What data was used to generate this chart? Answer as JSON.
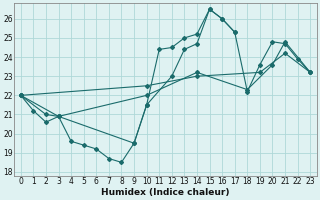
{
  "xlabel": "Humidex (Indice chaleur)",
  "bg_color": "#dff2f2",
  "grid_color": "#aed8d8",
  "line_color": "#1a6b6b",
  "xlim": [
    -0.5,
    23.5
  ],
  "ylim": [
    17.8,
    26.8
  ],
  "yticks": [
    18,
    19,
    20,
    21,
    22,
    23,
    24,
    25,
    26
  ],
  "xticks": [
    0,
    1,
    2,
    3,
    4,
    5,
    6,
    7,
    8,
    9,
    10,
    11,
    12,
    13,
    14,
    15,
    16,
    17,
    18,
    19,
    20,
    21,
    22,
    23
  ],
  "lines": [
    {
      "x": [
        0,
        1,
        2,
        3,
        4,
        5,
        6,
        7,
        8,
        9,
        10,
        11,
        12,
        13,
        14,
        15,
        16,
        17
      ],
      "y": [
        22,
        21.2,
        20.6,
        20.9,
        19.6,
        19.4,
        19.2,
        18.7,
        18.5,
        19.5,
        21.5,
        24.4,
        24.5,
        25.0,
        25.2,
        26.5,
        26.0,
        25.3
      ]
    },
    {
      "x": [
        0,
        2,
        3,
        9,
        10,
        12,
        13,
        14,
        15,
        16,
        17,
        18,
        19,
        20,
        21,
        22,
        23
      ],
      "y": [
        22,
        21.0,
        20.9,
        19.5,
        21.5,
        23.0,
        24.4,
        24.7,
        26.5,
        26.0,
        25.3,
        22.2,
        23.6,
        24.8,
        24.7,
        23.9,
        23.2
      ]
    },
    {
      "x": [
        0,
        3,
        10,
        14,
        18,
        20,
        21,
        23
      ],
      "y": [
        22,
        20.9,
        22.0,
        23.2,
        22.3,
        23.6,
        24.8,
        23.2
      ]
    },
    {
      "x": [
        0,
        10,
        14,
        19,
        21,
        23
      ],
      "y": [
        22,
        22.5,
        23.0,
        23.2,
        24.2,
        23.2
      ]
    }
  ]
}
